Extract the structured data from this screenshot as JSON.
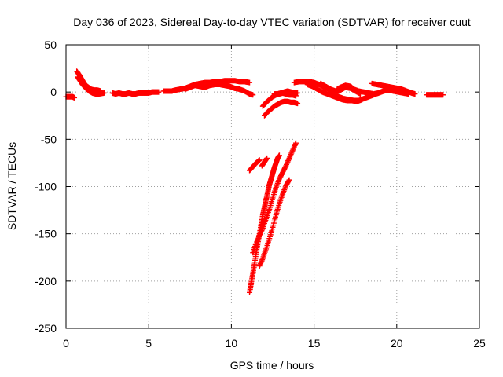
{
  "chart_data": {
    "type": "scatter",
    "title": "Day 036 of 2023, Sidereal Day-to-day VTEC variation (SDTVAR) for receiver cuut",
    "xlabel": "GPS time / hours",
    "ylabel": "SDTVAR / TECUs",
    "xlim": [
      0,
      25
    ],
    "ylim": [
      -250,
      50
    ],
    "xticks": [
      0,
      5,
      10,
      15,
      20,
      25
    ],
    "yticks": [
      50,
      0,
      -50,
      -100,
      -150,
      -200,
      -250
    ],
    "grid": true,
    "marker": "+",
    "color": "#ff0000",
    "series": [
      {
        "name": "track-start",
        "points": [
          [
            0.0,
            -5
          ],
          [
            0.2,
            -5
          ],
          [
            0.4,
            -5
          ],
          [
            0.5,
            -6
          ]
        ]
      },
      {
        "name": "track-early-spike",
        "points": [
          [
            0.65,
            22
          ],
          [
            0.8,
            18
          ],
          [
            0.9,
            15
          ],
          [
            1.0,
            12
          ],
          [
            1.1,
            9
          ],
          [
            1.2,
            7
          ],
          [
            1.35,
            5
          ],
          [
            1.5,
            3
          ],
          [
            1.7,
            2
          ],
          [
            1.9,
            2
          ],
          [
            2.1,
            1
          ]
        ]
      },
      {
        "name": "track-early-spike-b",
        "points": [
          [
            0.7,
            16
          ],
          [
            0.85,
            12
          ],
          [
            1.0,
            8
          ],
          [
            1.2,
            4
          ],
          [
            1.4,
            1
          ],
          [
            1.6,
            -1
          ],
          [
            1.8,
            -2
          ],
          [
            2.0,
            -2
          ],
          [
            2.3,
            -1
          ]
        ]
      },
      {
        "name": "track-flat-1",
        "points": [
          [
            2.8,
            -1
          ],
          [
            3.0,
            -2
          ],
          [
            3.2,
            -1
          ],
          [
            3.4,
            -2
          ],
          [
            3.6,
            -2
          ],
          [
            3.8,
            -1
          ],
          [
            4.0,
            -2
          ],
          [
            4.2,
            -2
          ],
          [
            4.4,
            -1
          ],
          [
            4.6,
            -1
          ],
          [
            4.8,
            -1
          ],
          [
            5.0,
            -1
          ],
          [
            5.2,
            0
          ],
          [
            5.4,
            0
          ],
          [
            5.6,
            0
          ]
        ]
      },
      {
        "name": "track-rise",
        "points": [
          [
            5.9,
            1
          ],
          [
            6.2,
            1
          ],
          [
            6.4,
            1
          ],
          [
            6.6,
            2
          ],
          [
            6.9,
            3
          ],
          [
            7.2,
            4
          ],
          [
            7.5,
            6
          ],
          [
            7.8,
            8
          ],
          [
            8.1,
            9
          ],
          [
            8.4,
            10
          ],
          [
            8.7,
            10
          ],
          [
            9.0,
            11
          ],
          [
            9.3,
            11
          ],
          [
            9.6,
            12
          ],
          [
            9.9,
            12
          ],
          [
            10.2,
            12
          ],
          [
            10.5,
            11
          ],
          [
            10.8,
            11
          ],
          [
            11.1,
            10
          ]
        ]
      },
      {
        "name": "track-rise-b",
        "points": [
          [
            7.2,
            3
          ],
          [
            7.5,
            5
          ],
          [
            7.8,
            7
          ],
          [
            8.1,
            6
          ],
          [
            8.4,
            5
          ],
          [
            8.7,
            7
          ],
          [
            9.0,
            8
          ],
          [
            9.3,
            8
          ],
          [
            9.6,
            7
          ],
          [
            9.9,
            6
          ],
          [
            10.2,
            4
          ],
          [
            10.5,
            3
          ],
          [
            10.8,
            1
          ],
          [
            11.1,
            -2
          ],
          [
            11.3,
            -3
          ]
        ]
      },
      {
        "name": "track-mid-1",
        "points": [
          [
            11.9,
            -15
          ],
          [
            12.1,
            -11
          ],
          [
            12.3,
            -8
          ],
          [
            12.5,
            -5
          ],
          [
            12.7,
            -3
          ],
          [
            12.9,
            -2
          ],
          [
            13.1,
            -1
          ],
          [
            13.3,
            -2
          ],
          [
            13.5,
            -3
          ],
          [
            13.7,
            -3
          ],
          [
            13.9,
            -4
          ]
        ]
      },
      {
        "name": "track-mid-2",
        "points": [
          [
            12.0,
            -25
          ],
          [
            12.2,
            -21
          ],
          [
            12.4,
            -18
          ],
          [
            12.6,
            -15
          ],
          [
            12.8,
            -13
          ],
          [
            13.0,
            -11
          ],
          [
            13.2,
            -10
          ],
          [
            13.4,
            -10
          ],
          [
            13.6,
            -11
          ],
          [
            13.8,
            -11
          ],
          [
            14.0,
            -12
          ]
        ]
      },
      {
        "name": "track-mid-3",
        "points": [
          [
            12.6,
            -2
          ],
          [
            12.8,
            -2
          ],
          [
            13.0,
            -1
          ],
          [
            13.2,
            0
          ],
          [
            13.4,
            1
          ],
          [
            13.6,
            0
          ],
          [
            13.8,
            -1
          ],
          [
            14.0,
            -1
          ]
        ]
      },
      {
        "name": "track-right-1",
        "points": [
          [
            13.8,
            10
          ],
          [
            14.1,
            11
          ],
          [
            14.4,
            11
          ],
          [
            14.7,
            11
          ],
          [
            15.0,
            10
          ],
          [
            15.3,
            8
          ],
          [
            15.6,
            5
          ],
          [
            15.9,
            3
          ],
          [
            16.2,
            -1
          ],
          [
            16.5,
            -5
          ],
          [
            16.8,
            -7
          ],
          [
            17.1,
            -8
          ],
          [
            17.4,
            -9
          ],
          [
            17.7,
            -9
          ],
          [
            18.0,
            -7
          ],
          [
            18.3,
            -5
          ],
          [
            18.6,
            -3
          ],
          [
            18.9,
            -1
          ],
          [
            19.2,
            1
          ]
        ]
      },
      {
        "name": "track-right-2",
        "points": [
          [
            14.6,
            8
          ],
          [
            14.9,
            6
          ],
          [
            15.2,
            3
          ],
          [
            15.5,
            0
          ],
          [
            15.8,
            -2
          ],
          [
            16.1,
            -4
          ],
          [
            16.4,
            -6
          ],
          [
            16.7,
            -8
          ],
          [
            17.0,
            -9
          ],
          [
            17.3,
            -9
          ],
          [
            17.6,
            -10
          ],
          [
            17.9,
            -8
          ]
        ]
      },
      {
        "name": "track-right-3",
        "points": [
          [
            15.4,
            9
          ],
          [
            15.7,
            6
          ],
          [
            16.0,
            3
          ],
          [
            16.3,
            1
          ],
          [
            16.6,
            2
          ],
          [
            16.9,
            5
          ],
          [
            17.2,
            4
          ],
          [
            17.5,
            1
          ],
          [
            17.8,
            -2
          ]
        ]
      },
      {
        "name": "track-right-4",
        "points": [
          [
            16.4,
            3
          ],
          [
            16.6,
            5
          ],
          [
            16.9,
            7
          ],
          [
            17.2,
            6
          ],
          [
            17.4,
            3
          ],
          [
            17.7,
            1
          ],
          [
            18.0,
            0
          ],
          [
            18.3,
            -1
          ],
          [
            18.6,
            -2
          ],
          [
            18.9,
            -1
          ],
          [
            19.2,
            1
          ],
          [
            19.5,
            2
          ],
          [
            19.8,
            1
          ],
          [
            20.1,
            0
          ],
          [
            20.4,
            -1
          ],
          [
            20.7,
            -2
          ]
        ]
      },
      {
        "name": "track-right-5",
        "points": [
          [
            18.5,
            9
          ],
          [
            18.8,
            8
          ],
          [
            19.1,
            7
          ],
          [
            19.4,
            6
          ],
          [
            19.7,
            5
          ],
          [
            20.0,
            4
          ],
          [
            20.3,
            3
          ],
          [
            20.6,
            1
          ],
          [
            20.9,
            -1
          ],
          [
            21.1,
            -2
          ]
        ]
      },
      {
        "name": "track-end",
        "points": [
          [
            21.8,
            -3
          ],
          [
            22.0,
            -3
          ],
          [
            22.2,
            -3
          ],
          [
            22.4,
            -3
          ],
          [
            22.6,
            -3
          ],
          [
            22.8,
            -3
          ]
        ]
      },
      {
        "name": "track-dip-fragment-1",
        "points": [
          [
            11.1,
            -83
          ],
          [
            11.3,
            -79
          ],
          [
            11.5,
            -75
          ],
          [
            11.7,
            -72
          ]
        ]
      },
      {
        "name": "track-dip-fragment-2",
        "points": [
          [
            11.85,
            -78
          ],
          [
            12.0,
            -74
          ],
          [
            12.15,
            -70
          ]
        ]
      },
      {
        "name": "track-dip-1",
        "points": [
          [
            11.1,
            -212
          ],
          [
            11.2,
            -202
          ],
          [
            11.3,
            -192
          ],
          [
            11.4,
            -182
          ],
          [
            11.5,
            -170
          ],
          [
            11.6,
            -160
          ],
          [
            11.7,
            -150
          ],
          [
            11.8,
            -140
          ],
          [
            11.9,
            -130
          ],
          [
            12.0,
            -122
          ],
          [
            12.1,
            -114
          ],
          [
            12.2,
            -106
          ],
          [
            12.3,
            -98
          ],
          [
            12.4,
            -92
          ],
          [
            12.5,
            -86
          ],
          [
            12.6,
            -80
          ],
          [
            12.7,
            -75
          ],
          [
            12.8,
            -70
          ],
          [
            12.9,
            -67
          ]
        ]
      },
      {
        "name": "track-dip-2",
        "points": [
          [
            11.3,
            -170
          ],
          [
            11.5,
            -160
          ],
          [
            11.7,
            -152
          ],
          [
            11.9,
            -144
          ],
          [
            12.1,
            -134
          ],
          [
            12.3,
            -124
          ],
          [
            12.5,
            -112
          ],
          [
            12.7,
            -101
          ],
          [
            12.9,
            -92
          ],
          [
            13.1,
            -85
          ],
          [
            13.3,
            -78
          ],
          [
            13.5,
            -70
          ],
          [
            13.7,
            -62
          ],
          [
            13.9,
            -54
          ]
        ]
      },
      {
        "name": "track-dip-3",
        "points": [
          [
            11.7,
            -184
          ],
          [
            11.9,
            -176
          ],
          [
            12.1,
            -166
          ],
          [
            12.3,
            -155
          ],
          [
            12.5,
            -143
          ],
          [
            12.7,
            -130
          ],
          [
            12.9,
            -118
          ],
          [
            13.1,
            -108
          ],
          [
            13.3,
            -99
          ],
          [
            13.5,
            -93
          ]
        ]
      }
    ]
  }
}
